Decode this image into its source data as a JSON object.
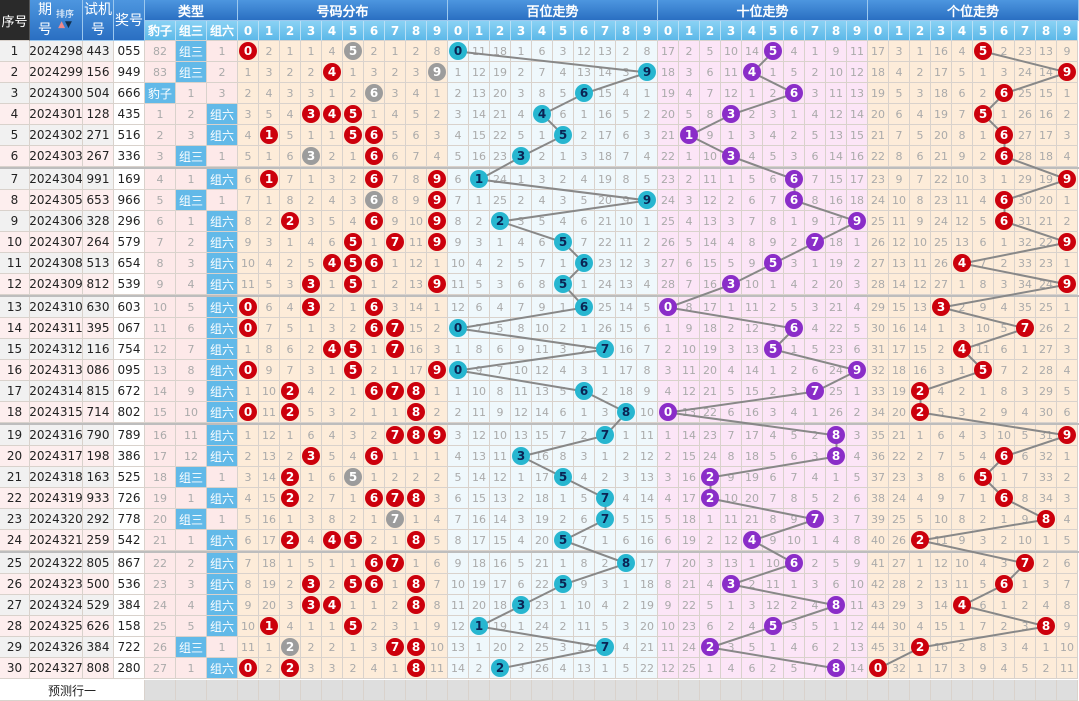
{
  "header": {
    "seq": "序号",
    "issue": "期号",
    "sort": "排序",
    "trial": "试机号",
    "win": "奖号",
    "type": "类型",
    "dist": "号码分布",
    "hundreds": "百位走势",
    "tens": "十位走势",
    "units": "个位走势",
    "type_labels": [
      "豹子",
      "组三",
      "组六"
    ],
    "digits": [
      "0",
      "1",
      "2",
      "3",
      "4",
      "5",
      "6",
      "7",
      "8",
      "9"
    ]
  },
  "icons": {
    "sort": "sort-up-down-icon"
  },
  "colors": {
    "header_blue": "#2a6fc2",
    "subheader_blue": "#5cb8e8",
    "dist_ball": "#cc000c",
    "dup_ball": "#9c9c9c",
    "hundreds_ball": "#27b6d0",
    "tens_ball": "#8a2dc8",
    "units_ball": "#cc000c",
    "dist_bg": "#fdecd9",
    "hundreds_bg": "#eff8fc",
    "tens_bg": "#fce5f7",
    "units_bg": "#fdecd9",
    "trend_line": "#888888"
  },
  "rows": [
    {
      "seq": "1",
      "issue": "2024298",
      "trial": "443",
      "win": "055"
    },
    {
      "seq": "2",
      "issue": "2024299",
      "trial": "156",
      "win": "949"
    },
    {
      "seq": "3",
      "issue": "2024300",
      "trial": "504",
      "win": "666"
    },
    {
      "seq": "4",
      "issue": "2024301",
      "trial": "128",
      "win": "435"
    },
    {
      "seq": "5",
      "issue": "2024302",
      "trial": "271",
      "win": "516"
    },
    {
      "seq": "6",
      "issue": "2024303",
      "trial": "267",
      "win": "336"
    },
    {
      "seq": "7",
      "issue": "2024304",
      "trial": "991",
      "win": "169"
    },
    {
      "seq": "8",
      "issue": "2024305",
      "trial": "653",
      "win": "966"
    },
    {
      "seq": "9",
      "issue": "2024306",
      "trial": "328",
      "win": "296"
    },
    {
      "seq": "10",
      "issue": "2024307",
      "trial": "264",
      "win": "579"
    },
    {
      "seq": "11",
      "issue": "2024308",
      "trial": "513",
      "win": "654"
    },
    {
      "seq": "12",
      "issue": "2024309",
      "trial": "812",
      "win": "539"
    },
    {
      "seq": "13",
      "issue": "2024310",
      "trial": "630",
      "win": "603"
    },
    {
      "seq": "14",
      "issue": "2024311",
      "trial": "395",
      "win": "067"
    },
    {
      "seq": "15",
      "issue": "2024312",
      "trial": "116",
      "win": "754"
    },
    {
      "seq": "16",
      "issue": "2024313",
      "trial": "086",
      "win": "095"
    },
    {
      "seq": "17",
      "issue": "2024314",
      "trial": "815",
      "win": "672"
    },
    {
      "seq": "18",
      "issue": "2024315",
      "trial": "714",
      "win": "802"
    },
    {
      "seq": "19",
      "issue": "2024316",
      "trial": "790",
      "win": "789"
    },
    {
      "seq": "20",
      "issue": "2024317",
      "trial": "198",
      "win": "386"
    },
    {
      "seq": "21",
      "issue": "2024318",
      "trial": "163",
      "win": "525"
    },
    {
      "seq": "22",
      "issue": "2024319",
      "trial": "933",
      "win": "726"
    },
    {
      "seq": "23",
      "issue": "2024320",
      "trial": "292",
      "win": "778"
    },
    {
      "seq": "24",
      "issue": "2024321",
      "trial": "259",
      "win": "542"
    },
    {
      "seq": "25",
      "issue": "2024322",
      "trial": "805",
      "win": "867"
    },
    {
      "seq": "26",
      "issue": "2024323",
      "trial": "500",
      "win": "536"
    },
    {
      "seq": "27",
      "issue": "2024324",
      "trial": "529",
      "win": "384"
    },
    {
      "seq": "28",
      "issue": "2024325",
      "trial": "626",
      "win": "158"
    },
    {
      "seq": "29",
      "issue": "2024326",
      "trial": "384",
      "win": "722"
    },
    {
      "seq": "30",
      "issue": "2024327",
      "trial": "808",
      "win": "280"
    }
  ],
  "omission": {
    "type": [
      [
        82,
        83,
        0,
        1,
        2,
        3,
        4,
        5,
        6,
        7,
        8,
        9,
        10,
        11,
        12,
        13,
        14,
        15,
        16,
        17,
        18,
        19,
        20,
        21,
        22,
        23,
        24,
        25,
        26,
        27
      ],
      [
        0,
        0,
        1,
        2,
        3,
        0,
        1,
        0,
        1,
        2,
        3,
        4,
        5,
        6,
        7,
        8,
        9,
        10,
        11,
        12,
        0,
        1,
        0,
        1,
        2,
        3,
        4,
        5,
        0,
        1
      ],
      [
        1,
        2,
        3,
        0,
        0,
        1,
        0,
        1,
        0,
        0,
        0,
        0,
        0,
        0,
        0,
        0,
        0,
        0,
        0,
        0,
        1,
        0,
        1,
        0,
        0,
        0,
        0,
        0,
        1,
        0
      ]
    ],
    "dist": [
      [
        0,
        1,
        2,
        3,
        4,
        5,
        6,
        7,
        8,
        9,
        10,
        11,
        0,
        0,
        1,
        0,
        1,
        0,
        1,
        2,
        3,
        4,
        5,
        6,
        7,
        8,
        9,
        10,
        11,
        0
      ],
      [
        2,
        3,
        4,
        5,
        0,
        1,
        0,
        1,
        2,
        3,
        4,
        5,
        6,
        7,
        8,
        9,
        10,
        11,
        12,
        13,
        14,
        15,
        16,
        17,
        18,
        19,
        20,
        0,
        1,
        2
      ],
      [
        1,
        2,
        3,
        4,
        5,
        6,
        7,
        8,
        0,
        1,
        2,
        3,
        4,
        5,
        6,
        7,
        0,
        0,
        1,
        2,
        0,
        0,
        1,
        0,
        1,
        2,
        3,
        4,
        0,
        0
      ],
      [
        1,
        2,
        3,
        0,
        1,
        0,
        1,
        2,
        3,
        4,
        5,
        0,
        0,
        1,
        2,
        3,
        4,
        5,
        6,
        0,
        1,
        2,
        3,
        4,
        5,
        0,
        0,
        1,
        2,
        3
      ],
      [
        4,
        0,
        1,
        0,
        1,
        2,
        3,
        4,
        5,
        6,
        0,
        1,
        2,
        3,
        0,
        1,
        2,
        3,
        4,
        5,
        6,
        7,
        8,
        0,
        1,
        2,
        0,
        1,
        2,
        3
      ],
      [
        0,
        1,
        2,
        0,
        0,
        1,
        2,
        3,
        4,
        0,
        0,
        0,
        1,
        2,
        0,
        0,
        1,
        2,
        3,
        4,
        0,
        1,
        2,
        0,
        1,
        0,
        1,
        0,
        1,
        2
      ],
      [
        2,
        3,
        0,
        1,
        0,
        0,
        0,
        0,
        0,
        1,
        0,
        1,
        0,
        0,
        1,
        2,
        0,
        1,
        2,
        0,
        1,
        0,
        1,
        2,
        0,
        0,
        1,
        2,
        3,
        4
      ],
      [
        1,
        2,
        3,
        4,
        5,
        6,
        7,
        8,
        9,
        0,
        1,
        2,
        3,
        0,
        0,
        1,
        0,
        1,
        0,
        1,
        2,
        0,
        0,
        1,
        0,
        1,
        2,
        3,
        0,
        1
      ],
      [
        2,
        3,
        4,
        5,
        6,
        7,
        8,
        9,
        10,
        11,
        12,
        13,
        14,
        15,
        16,
        17,
        0,
        0,
        0,
        1,
        2,
        0,
        1,
        0,
        1,
        0,
        0,
        1,
        0,
        0
      ],
      [
        8,
        0,
        1,
        2,
        3,
        4,
        0,
        0,
        0,
        0,
        1,
        0,
        1,
        2,
        3,
        0,
        1,
        2,
        0,
        1,
        2,
        3,
        4,
        5,
        6,
        7,
        8,
        9,
        10,
        11
      ]
    ],
    "hundreds": [
      [
        0,
        1,
        2,
        3,
        4,
        5,
        6,
        7,
        8,
        9,
        10,
        11,
        12,
        0,
        1,
        0,
        1,
        2,
        3,
        4,
        5,
        6,
        7,
        8,
        9,
        10,
        11,
        12,
        13,
        14
      ],
      [
        11,
        12,
        13,
        14,
        15,
        16,
        0,
        1,
        2,
        3,
        4,
        5,
        6,
        7,
        8,
        9,
        10,
        11,
        12,
        13,
        14,
        15,
        16,
        17,
        18,
        19,
        20,
        0,
        1,
        2
      ],
      [
        18,
        19,
        20,
        21,
        22,
        23,
        24,
        25,
        0,
        1,
        2,
        3,
        4,
        5,
        6,
        7,
        8,
        9,
        10,
        11,
        12,
        13,
        14,
        15,
        16,
        17,
        18,
        19,
        20,
        0
      ],
      [
        1,
        2,
        3,
        4,
        5,
        0,
        1,
        2,
        3,
        4,
        5,
        6,
        7,
        8,
        9,
        10,
        11,
        12,
        13,
        0,
        1,
        2,
        3,
        4,
        5,
        6,
        0,
        1,
        2,
        3
      ],
      [
        6,
        7,
        8,
        0,
        1,
        2,
        3,
        4,
        5,
        6,
        7,
        8,
        9,
        10,
        11,
        12,
        13,
        14,
        15,
        16,
        17,
        18,
        19,
        20,
        21,
        22,
        23,
        24,
        25,
        26
      ],
      [
        3,
        4,
        5,
        6,
        0,
        1,
        2,
        3,
        4,
        0,
        1,
        0,
        1,
        2,
        3,
        4,
        5,
        6,
        7,
        8,
        0,
        1,
        2,
        0,
        1,
        0,
        1,
        2,
        3,
        4
      ],
      [
        12,
        13,
        0,
        1,
        2,
        3,
        4,
        5,
        6,
        7,
        0,
        1,
        0,
        1,
        2,
        3,
        0,
        1,
        2,
        3,
        4,
        5,
        6,
        7,
        8,
        9,
        10,
        11,
        12,
        13
      ],
      [
        13,
        14,
        15,
        16,
        17,
        18,
        19,
        20,
        21,
        22,
        23,
        24,
        25,
        26,
        0,
        1,
        2,
        3,
        0,
        1,
        2,
        0,
        0,
        1,
        2,
        3,
        4,
        5,
        0,
        1
      ],
      [
        2,
        3,
        4,
        5,
        6,
        7,
        8,
        9,
        10,
        11,
        12,
        13,
        14,
        15,
        16,
        17,
        18,
        0,
        1,
        2,
        3,
        4,
        5,
        6,
        0,
        1,
        2,
        3,
        4,
        5
      ],
      [
        8,
        0,
        1,
        2,
        3,
        4,
        5,
        0,
        1,
        2,
        3,
        4,
        5,
        6,
        7,
        8,
        9,
        10,
        11,
        12,
        13,
        14,
        15,
        16,
        17,
        18,
        19,
        20,
        21,
        22
      ]
    ],
    "tens": [
      [
        17,
        18,
        19,
        20,
        21,
        22,
        23,
        24,
        25,
        26,
        27,
        28,
        0,
        1,
        2,
        3,
        4,
        0,
        1,
        2,
        3,
        4,
        5,
        6,
        7,
        8,
        9,
        10,
        11,
        12
      ],
      [
        2,
        3,
        4,
        5,
        0,
        1,
        2,
        3,
        4,
        5,
        6,
        7,
        8,
        9,
        10,
        11,
        12,
        13,
        14,
        15,
        16,
        17,
        18,
        19,
        20,
        21,
        22,
        23,
        24,
        25
      ],
      [
        5,
        6,
        7,
        8,
        9,
        10,
        11,
        12,
        13,
        14,
        15,
        16,
        17,
        18,
        19,
        20,
        21,
        22,
        23,
        24,
        0,
        0,
        1,
        2,
        3,
        4,
        5,
        6,
        0,
        1
      ],
      [
        10,
        11,
        12,
        0,
        1,
        0,
        1,
        2,
        3,
        4,
        5,
        0,
        1,
        2,
        3,
        4,
        5,
        6,
        7,
        8,
        9,
        10,
        11,
        12,
        13,
        0,
        1,
        2,
        3,
        4
      ],
      [
        14,
        0,
        1,
        2,
        3,
        4,
        5,
        6,
        7,
        8,
        9,
        10,
        11,
        12,
        13,
        14,
        15,
        16,
        17,
        18,
        19,
        20,
        21,
        0,
        1,
        2,
        3,
        4,
        5,
        6
      ],
      [
        0,
        1,
        2,
        3,
        4,
        5,
        6,
        7,
        8,
        9,
        0,
        1,
        2,
        3,
        0,
        1,
        2,
        3,
        4,
        5,
        6,
        7,
        8,
        9,
        10,
        11,
        12,
        0,
        1,
        2
      ],
      [
        4,
        5,
        0,
        1,
        2,
        3,
        0,
        0,
        1,
        2,
        3,
        4,
        5,
        0,
        1,
        2,
        3,
        4,
        5,
        6,
        7,
        8,
        9,
        10,
        0,
        1,
        2,
        3,
        4,
        5
      ],
      [
        1,
        2,
        3,
        4,
        5,
        6,
        7,
        8,
        9,
        0,
        1,
        2,
        3,
        4,
        5,
        6,
        0,
        1,
        2,
        3,
        4,
        5,
        0,
        1,
        2,
        3,
        4,
        5,
        6,
        7
      ],
      [
        9,
        10,
        11,
        12,
        13,
        14,
        15,
        16,
        17,
        18,
        19,
        20,
        21,
        22,
        23,
        24,
        25,
        26,
        0,
        0,
        1,
        2,
        3,
        4,
        5,
        6,
        0,
        1,
        2,
        0
      ],
      [
        11,
        12,
        13,
        14,
        15,
        16,
        17,
        18,
        0,
        1,
        2,
        3,
        4,
        5,
        6,
        0,
        1,
        2,
        3,
        4,
        5,
        6,
        7,
        8,
        9,
        10,
        11,
        12,
        13,
        14
      ]
    ],
    "units": [
      [
        17,
        18,
        19,
        20,
        21,
        22,
        23,
        24,
        25,
        26,
        27,
        28,
        29,
        30,
        31,
        32,
        33,
        34,
        35,
        36,
        37,
        38,
        39,
        40,
        41,
        42,
        43,
        44,
        45,
        0
      ],
      [
        3,
        4,
        5,
        6,
        7,
        8,
        9,
        10,
        11,
        12,
        13,
        14,
        15,
        16,
        17,
        18,
        19,
        20,
        21,
        22,
        23,
        24,
        25,
        26,
        27,
        28,
        29,
        30,
        31,
        32
      ],
      [
        1,
        2,
        3,
        4,
        5,
        6,
        7,
        8,
        9,
        10,
        11,
        12,
        13,
        14,
        15,
        16,
        0,
        0,
        1,
        2,
        3,
        4,
        5,
        0,
        1,
        2,
        3,
        4,
        0,
        1
      ],
      [
        16,
        17,
        18,
        19,
        20,
        21,
        22,
        23,
        24,
        25,
        26,
        27,
        0,
        1,
        2,
        3,
        4,
        5,
        6,
        7,
        8,
        9,
        10,
        11,
        12,
        13,
        14,
        15,
        16,
        17
      ],
      [
        4,
        5,
        6,
        7,
        8,
        9,
        10,
        11,
        12,
        13,
        0,
        1,
        2,
        3,
        0,
        1,
        2,
        3,
        4,
        5,
        6,
        7,
        8,
        9,
        10,
        11,
        0,
        1,
        2,
        3
      ],
      [
        0,
        1,
        2,
        0,
        1,
        2,
        3,
        4,
        5,
        6,
        7,
        8,
        9,
        10,
        11,
        0,
        1,
        2,
        3,
        4,
        0,
        1,
        2,
        3,
        4,
        5,
        6,
        7,
        8,
        9
      ],
      [
        2,
        3,
        0,
        1,
        0,
        0,
        1,
        0,
        0,
        1,
        2,
        3,
        4,
        5,
        6,
        7,
        8,
        9,
        10,
        0,
        1,
        0,
        1,
        2,
        3,
        0,
        1,
        2,
        3,
        4
      ],
      [
        23,
        24,
        25,
        26,
        27,
        28,
        29,
        30,
        31,
        32,
        33,
        34,
        35,
        0,
        1,
        2,
        3,
        4,
        5,
        6,
        7,
        8,
        9,
        10,
        0,
        1,
        2,
        3,
        4,
        5
      ],
      [
        13,
        14,
        15,
        16,
        17,
        18,
        19,
        20,
        21,
        22,
        23,
        24,
        25,
        26,
        27,
        28,
        29,
        30,
        31,
        32,
        33,
        34,
        0,
        1,
        2,
        3,
        4,
        0,
        1,
        2
      ],
      [
        9,
        0,
        1,
        2,
        3,
        4,
        0,
        1,
        2,
        0,
        1,
        0,
        1,
        2,
        3,
        4,
        5,
        6,
        0,
        1,
        2,
        3,
        4,
        5,
        6,
        7,
        8,
        9,
        10,
        11
      ]
    ]
  },
  "predict_label": "预测行一"
}
